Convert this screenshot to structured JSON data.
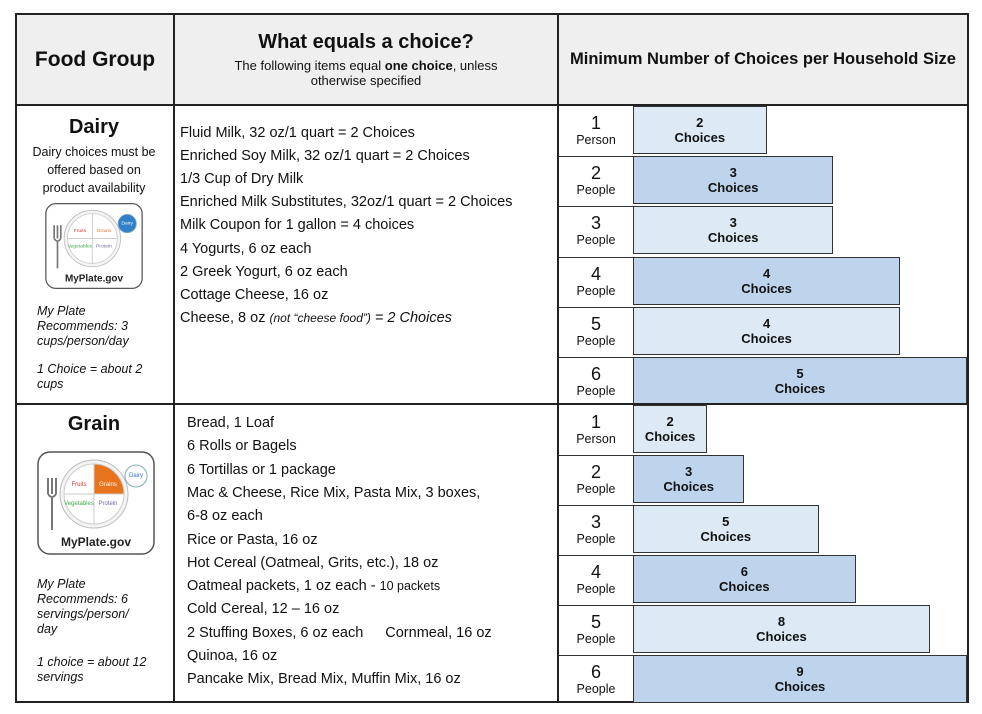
{
  "header": {
    "food_group": "Food Group",
    "title": "What equals a choice?",
    "subtitle_parts": [
      "The following items equal ",
      "one choice",
      ", unless otherwise specified"
    ],
    "min_choices": "Minimum Number of Choices per Household Size"
  },
  "groups": [
    {
      "name": "Dairy",
      "note": "Dairy choices must be offered based on product availability",
      "plate": {
        "site": "MyPlate.gov",
        "labels": [
          "Fruits",
          "Grains",
          "Vegetables",
          "Protein",
          "Dairy"
        ]
      },
      "recommend": "My Plate Recommends: 3 cups/person/day",
      "equivalent": "1 Choice = about 2 cups",
      "items": [
        [
          "Fluid Milk, 32 oz/1 quart = 2 Choices"
        ],
        [
          "Enriched Soy Milk, 32 oz/1 quart = 2 Choices"
        ],
        [
          "1/3 Cup of Dry Milk"
        ],
        [
          "Enriched Milk Substitutes, 32oz/1 quart = 2 Choices"
        ],
        [
          "Milk Coupon for 1 gallon = 4 choices"
        ],
        [
          "4 Yogurts, 6 oz each"
        ],
        [
          "2 Greek Yogurt, 6 oz each"
        ],
        [
          "Cottage Cheese, 16 oz"
        ],
        [
          "Cheese, 8 oz ",
          "(not “cheese food”)",
          " = 2 Choices"
        ]
      ],
      "rows": [
        {
          "size": 1,
          "unit": "Person",
          "choices": 2,
          "label": "Choices"
        },
        {
          "size": 2,
          "unit": "People",
          "choices": 3,
          "label": "Choices"
        },
        {
          "size": 3,
          "unit": "People",
          "choices": 3,
          "label": "Choices"
        },
        {
          "size": 4,
          "unit": "People",
          "choices": 4,
          "label": "Choices"
        },
        {
          "size": 5,
          "unit": "People",
          "choices": 4,
          "label": "Choices"
        },
        {
          "size": 6,
          "unit": "People",
          "choices": 5,
          "label": "Choices"
        }
      ]
    },
    {
      "name": "Grain",
      "plate": {
        "site": "MyPlate.gov",
        "labels": [
          "Fruits",
          "Grains",
          "Vegetables",
          "Protein",
          "Dairy"
        ]
      },
      "recommend": "My Plate Recommends: 6 servings/person/ day",
      "equivalent": "1 choice = about 12 servings",
      "items": [
        [
          "Bread, 1 Loaf"
        ],
        [
          "6 Rolls or Bagels"
        ],
        [
          "6 Tortillas or 1 package"
        ],
        [
          "Mac & Cheese, Rice Mix, Pasta Mix,  3 boxes,"
        ],
        [
          "6-8 oz each"
        ],
        [
          "Rice or Pasta, 16 oz"
        ],
        [
          "Hot Cereal (Oatmeal, Grits, etc.), 18 oz"
        ],
        [
          "Oatmeal packets, 1 oz each - ",
          "10 packets"
        ],
        [
          "Cold Cereal, 12 – 16 oz"
        ],
        [
          "2 Stuffing Boxes, 6 oz each",
          "Cornmeal, 16 oz"
        ],
        [
          "Quinoa, 16 oz"
        ],
        [
          "Pancake Mix, Bread Mix, Muffin Mix, 16 oz"
        ]
      ],
      "rows": [
        {
          "size": 1,
          "unit": "Person",
          "choices": 2,
          "label": "Choices"
        },
        {
          "size": 2,
          "unit": "People",
          "choices": 3,
          "label": "Choices"
        },
        {
          "size": 3,
          "unit": "People",
          "choices": 5,
          "label": "Choices"
        },
        {
          "size": 4,
          "unit": "People",
          "choices": 6,
          "label": "Choices"
        },
        {
          "size": 5,
          "unit": "People",
          "choices": 8,
          "label": "Choices"
        },
        {
          "size": 6,
          "unit": "People",
          "choices": 9,
          "label": "Choices"
        }
      ]
    }
  ]
}
